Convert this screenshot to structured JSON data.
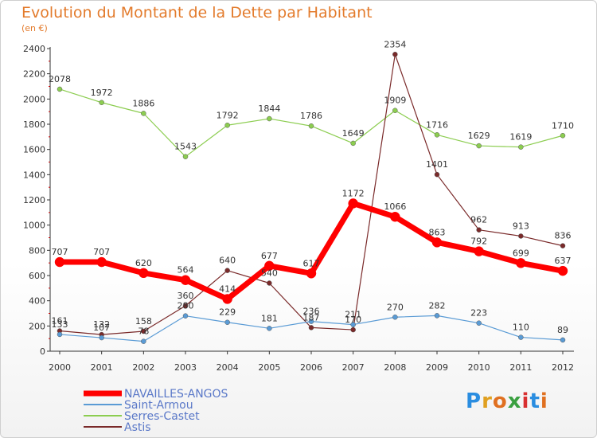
{
  "title": "Evolution du Montant de la Dette par Habitant",
  "subtitle": "(en €)",
  "logo": {
    "text": "Proxiti",
    "letters": [
      "P",
      "r",
      "o",
      "x",
      "i",
      "t",
      "i"
    ],
    "colors": [
      "#2a8de0",
      "#e0a020",
      "#e07020",
      "#3aa040",
      "#d83030",
      "#2a8de0",
      "#e07020"
    ]
  },
  "chart_data": {
    "type": "line",
    "title": "Evolution du Montant de la Dette par Habitant",
    "subtitle": "(en €)",
    "x": [
      "2000",
      "2001",
      "2002",
      "2003",
      "2004",
      "2005",
      "2006",
      "2007",
      "2008",
      "2009",
      "2010",
      "2011",
      "2012"
    ],
    "ylim": [
      0,
      2400
    ],
    "yticks": [
      "0",
      "200",
      "400",
      "600",
      "800",
      "1000",
      "1200",
      "1400",
      "1600",
      "1800",
      "2000",
      "2200",
      "2400"
    ],
    "grid": false,
    "legend_position": "bottom-left",
    "series": [
      {
        "name": "NAVAILLES-ANGOS",
        "color": "#ff0000",
        "width": 7,
        "values": [
          707,
          707,
          620,
          564,
          414,
          677,
          617,
          1172,
          1066,
          863,
          792,
          699,
          637
        ],
        "labels": [
          "707",
          "707",
          "620",
          "564",
          "414",
          "677",
          "617",
          "1172",
          "1066",
          "863",
          "792",
          "699",
          "637"
        ]
      },
      {
        "name": "Saint-Armou",
        "color": "#5a9bd5",
        "width": 1.2,
        "values": [
          133,
          107,
          78,
          280,
          229,
          181,
          236,
          211,
          270,
          282,
          223,
          110,
          89
        ],
        "labels": [
          "133",
          "107",
          "78",
          "280",
          "229",
          "181",
          "236",
          "211",
          "270",
          "282",
          "223",
          "110",
          "89"
        ]
      },
      {
        "name": "Serres-Castet",
        "color": "#8ccd50",
        "width": 1.2,
        "values": [
          2078,
          1972,
          1886,
          1543,
          1792,
          1844,
          1786,
          1649,
          1909,
          1716,
          1629,
          1619,
          1710
        ],
        "labels": [
          "2078",
          "1972",
          "1886",
          "1543",
          "1792",
          "1844",
          "1786",
          "1649",
          "1909",
          "1716",
          "1629",
          "1619",
          "1710"
        ]
      },
      {
        "name": "Astis",
        "color": "#7a2a2a",
        "width": 1.2,
        "values": [
          161,
          132,
          158,
          360,
          640,
          540,
          187,
          170,
          2354,
          1401,
          962,
          913,
          836
        ],
        "labels": [
          "161",
          "132",
          "158",
          "360",
          "640",
          "540",
          "187",
          "170",
          "2354",
          "1401",
          "962",
          "913",
          "836"
        ]
      }
    ]
  }
}
